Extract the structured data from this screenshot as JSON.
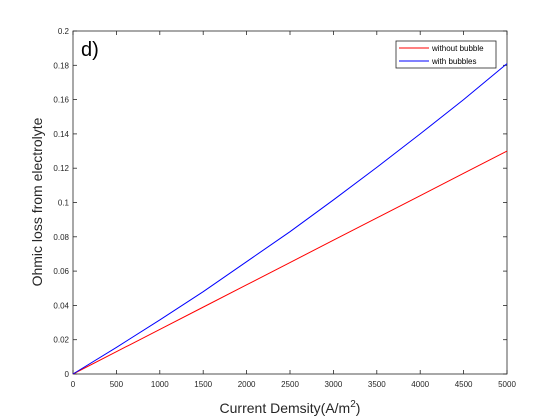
{
  "chart_data": {
    "type": "line",
    "panel_label": "d)",
    "xlabel": "Current Demsity(A/m",
    "xlabel_sup": "2",
    "xlabel_suffix": ")",
    "ylabel": "Ohmic loss from electrolyte",
    "xlim": [
      0,
      5000
    ],
    "ylim": [
      0,
      0.2
    ],
    "x_ticks": [
      0,
      500,
      1000,
      1500,
      2000,
      2500,
      3000,
      3500,
      4000,
      4500,
      5000
    ],
    "y_ticks": [
      0,
      0.02,
      0.04,
      0.06,
      0.08,
      0.1,
      0.12,
      0.14,
      0.16,
      0.18,
      0.2
    ],
    "grid": false,
    "legend_position": "top-right",
    "series": [
      {
        "name": "without bubble",
        "color": "#ff0000",
        "x": [
          0,
          500,
          1000,
          1500,
          2000,
          2500,
          3000,
          3500,
          4000,
          4500,
          5000
        ],
        "y": [
          0,
          0.013,
          0.026,
          0.039,
          0.052,
          0.065,
          0.078,
          0.091,
          0.104,
          0.117,
          0.13
        ]
      },
      {
        "name": "with bubbles",
        "color": "#0000ff",
        "x": [
          0,
          500,
          1000,
          1500,
          2000,
          2500,
          3000,
          3500,
          4000,
          4500,
          5000
        ],
        "y": [
          0,
          0.0155,
          0.0315,
          0.048,
          0.0655,
          0.083,
          0.1015,
          0.1205,
          0.14,
          0.16,
          0.181
        ]
      }
    ]
  }
}
